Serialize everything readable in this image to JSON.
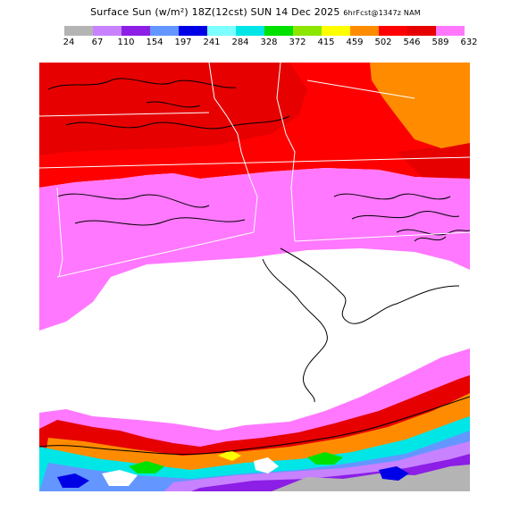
{
  "title": {
    "main": "Surface Sun (w/m²) 18Z(12cst) SUN 14 Dec 2025",
    "forecast": "6hrFcst@1347z NAM"
  },
  "legend": {
    "ticks": [
      "24",
      "67",
      "110",
      "154",
      "197",
      "241",
      "284",
      "328",
      "372",
      "415",
      "459",
      "502",
      "546",
      "589",
      "632"
    ],
    "colors": [
      "#b4b4b4",
      "#c882ff",
      "#8c1ee6",
      "#6496ff",
      "#0000e6",
      "#7dffff",
      "#00e6e6",
      "#00e100",
      "#8ce600",
      "#ffff00",
      "#ff8c00",
      "#ff0000",
      "#e60000",
      "#ff78ff"
    ]
  },
  "map": {
    "field": "surface solar radiation",
    "colors": {
      "bright_red": "#ff0000",
      "dark_red": "#e60000",
      "orange": "#ff8c00",
      "pink": "#ff78ff",
      "white": "#ffffff",
      "border": "#ffffff",
      "contour": "#000000"
    }
  }
}
